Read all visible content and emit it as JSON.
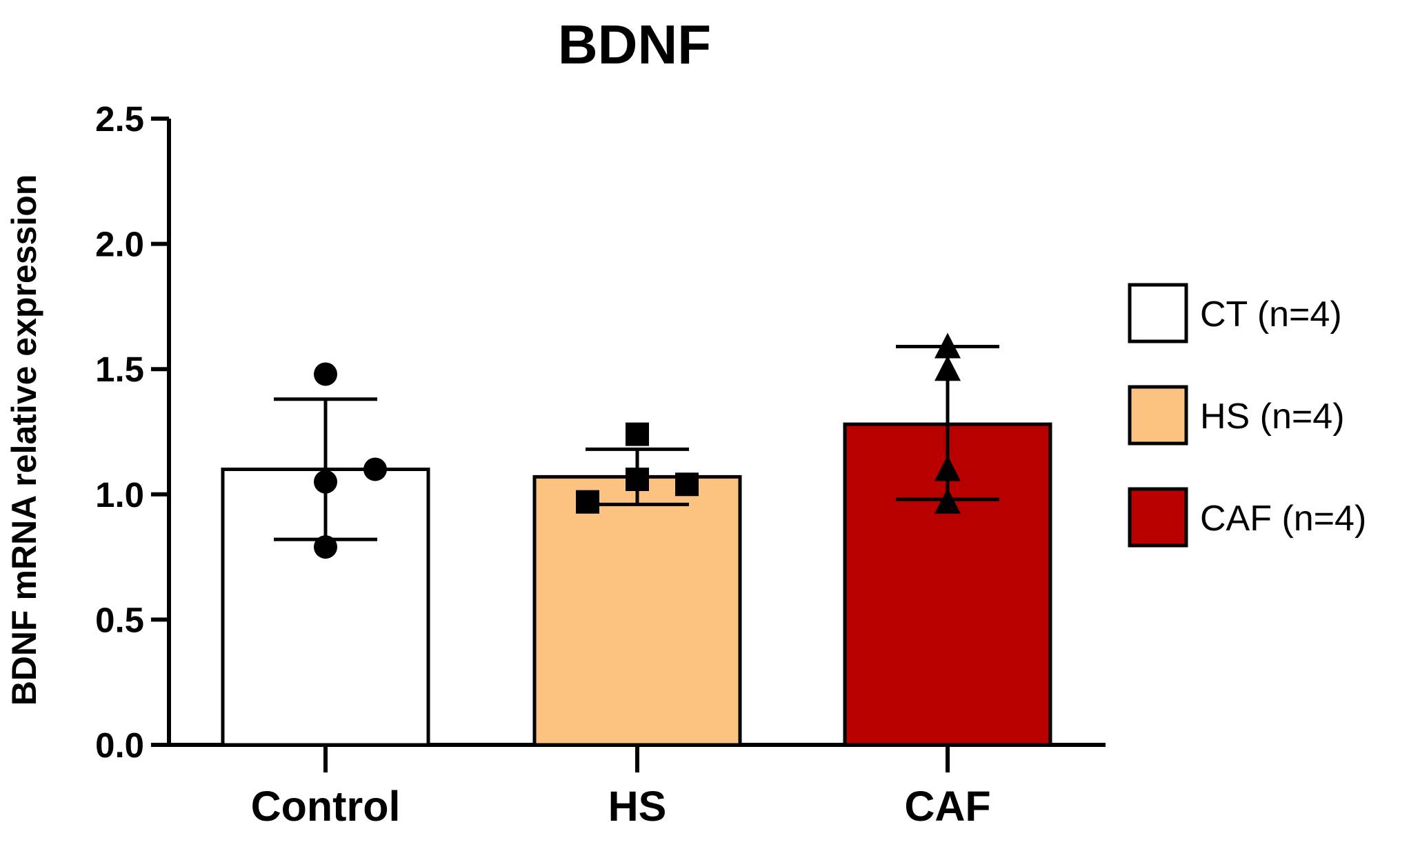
{
  "chart_data": {
    "type": "bar",
    "title": "BDNF",
    "xlabel": "",
    "ylabel": "BDNF mRNA relative expression",
    "ylim": [
      0,
      2.5
    ],
    "yticks": [
      "0.0",
      "0.5",
      "1.0",
      "1.5",
      "2.0",
      "2.5"
    ],
    "categories": [
      "Control",
      "HS",
      "CAF"
    ],
    "values": [
      1.1,
      1.07,
      1.28
    ],
    "error_bars": [
      {
        "low": 0.82,
        "high": 1.38
      },
      {
        "low": 0.96,
        "high": 1.18
      },
      {
        "low": 0.98,
        "high": 1.59
      }
    ],
    "points": [
      [
        1.48,
        1.05,
        1.1,
        0.79
      ],
      [
        1.24,
        1.06,
        1.04,
        0.97
      ],
      [
        1.59,
        1.5,
        1.1,
        0.97
      ]
    ],
    "markers": [
      "circle",
      "square",
      "triangle"
    ],
    "colors": [
      "#ffffff",
      "#fbc281",
      "#b80000"
    ],
    "legend": [
      {
        "label": "CT (n=4)",
        "color": "#ffffff"
      },
      {
        "label": "HS (n=4)",
        "color": "#fbc281"
      },
      {
        "label": "CAF (n=4)",
        "color": "#b80000"
      }
    ],
    "legend_position": "right",
    "grid": false
  }
}
